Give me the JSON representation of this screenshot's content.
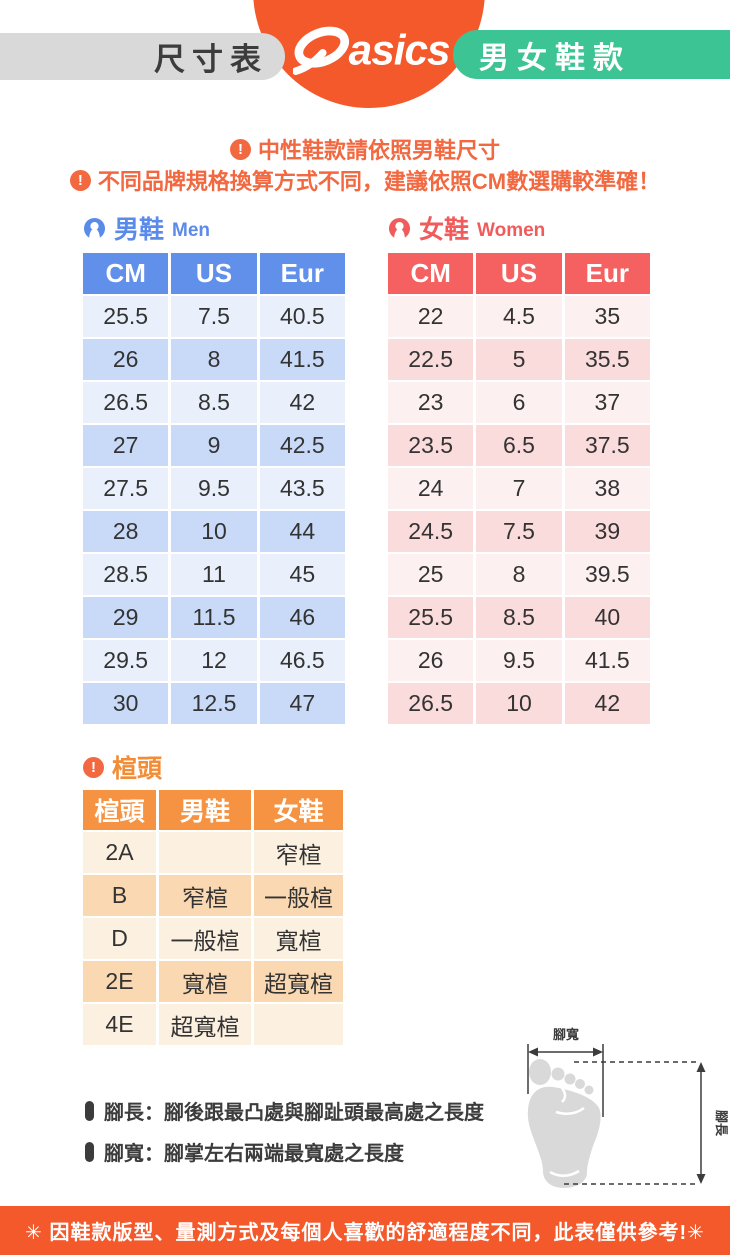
{
  "header": {
    "size_chart_label": "尺寸表",
    "brand": "asics",
    "category_label": "男女鞋款"
  },
  "notices": {
    "line1": "中性鞋款請依照男鞋尺寸",
    "line2": "不同品牌規格換算方式不同，建議依照CM數選購較準確！"
  },
  "men_table": {
    "title_zh": "男鞋",
    "title_en": "Men",
    "columns": [
      "CM",
      "US",
      "Eur"
    ],
    "rows": [
      [
        "25.5",
        "7.5",
        "40.5"
      ],
      [
        "26",
        "8",
        "41.5"
      ],
      [
        "26.5",
        "8.5",
        "42"
      ],
      [
        "27",
        "9",
        "42.5"
      ],
      [
        "27.5",
        "9.5",
        "43.5"
      ],
      [
        "28",
        "10",
        "44"
      ],
      [
        "28.5",
        "11",
        "45"
      ],
      [
        "29",
        "11.5",
        "46"
      ],
      [
        "29.5",
        "12",
        "46.5"
      ],
      [
        "30",
        "12.5",
        "47"
      ]
    ]
  },
  "women_table": {
    "title_zh": "女鞋",
    "title_en": "Women",
    "columns": [
      "CM",
      "US",
      "Eur"
    ],
    "rows": [
      [
        "22",
        "4.5",
        "35"
      ],
      [
        "22.5",
        "5",
        "35.5"
      ],
      [
        "23",
        "6",
        "37"
      ],
      [
        "23.5",
        "6.5",
        "37.5"
      ],
      [
        "24",
        "7",
        "38"
      ],
      [
        "24.5",
        "7.5",
        "39"
      ],
      [
        "25",
        "8",
        "39.5"
      ],
      [
        "25.5",
        "8.5",
        "40"
      ],
      [
        "26",
        "9.5",
        "41.5"
      ],
      [
        "26.5",
        "10",
        "42"
      ]
    ]
  },
  "width_section": {
    "title": "楦頭",
    "columns": [
      "楦頭",
      "男鞋",
      "女鞋"
    ],
    "rows": [
      [
        "2A",
        "",
        "窄楦"
      ],
      [
        "B",
        "窄楦",
        "一般楦"
      ],
      [
        "D",
        "一般楦",
        "寬楦"
      ],
      [
        "2E",
        "寬楦",
        "超寬楦"
      ],
      [
        "4E",
        "超寬楦",
        ""
      ]
    ]
  },
  "foot_diagram": {
    "width_label": "腳寬",
    "length_label": "腳長"
  },
  "foot_notes": {
    "length_note": "腳長：腳後跟最凸處與腳趾頭最高處之長度",
    "width_note": "腳寬：腳掌左右兩端最寬處之長度"
  },
  "footer": {
    "disclaimer": "✳ 因鞋款版型、量測方式及每個人喜歡的舒適程度不同，此表僅供參考!✳"
  },
  "colors": {
    "brand-orange": "#F4592C",
    "notice-orange": "#F26840",
    "green-badge": "#3CC495",
    "gray-badge": "#D9D9D9",
    "dark-text": "#3C3C3C",
    "table-text": "#333333",
    "men-header": "#6190EA",
    "men-row-light": "#E9F0FC",
    "men-row-dark": "#C9DAF8",
    "men-accent": "#5B8BE8",
    "women-header": "#F56060",
    "women-row-light": "#FDF0F0",
    "women-row-dark": "#FBDCDC",
    "women-accent": "#F25B5B",
    "width-header": "#F59342",
    "width-row-light": "#FCF0E1",
    "width-row-dark": "#FAD9B2",
    "width-accent": "#F28C35",
    "foot-gray": "#D9D9D9"
  }
}
